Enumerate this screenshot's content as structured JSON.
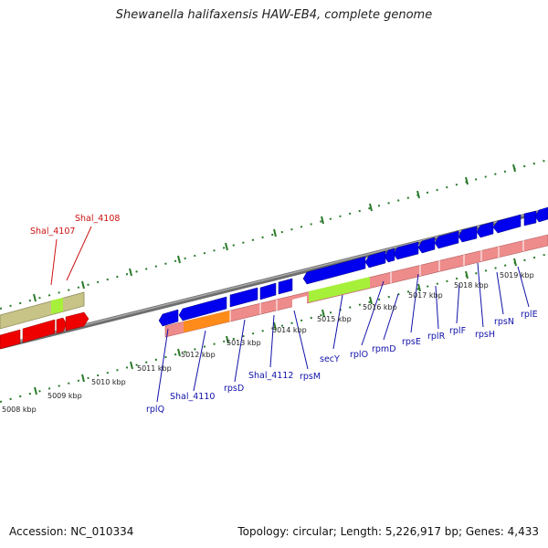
{
  "title": "Shewanella halifaxensis HAW-EB4, complete genome",
  "footer": {
    "accession": "Accession: NC_010334",
    "summary": "Topology: circular; Length: 5,226,917 bp; Genes: 4,433"
  },
  "colors": {
    "plus_cds": "#0000ee",
    "minus_cds": "#ee0000",
    "olive_band": "#c8c487",
    "green_seg": "#a6f03a",
    "pink_band": "#ee8c8c",
    "orange_seg": "#ff8c1a",
    "tick": "#2a7a2a",
    "label_blue": "#1111aa",
    "label_red": "#cc1111"
  },
  "scale_labels": [
    "5008 kbp",
    "5009 kbp",
    "5010 kbp",
    "5011 kbp",
    "5012 kbp",
    "5013 kbp",
    "5014 kbp",
    "5015 kbp",
    "5016 kbp",
    "5017 kbp",
    "5018 kbp",
    "5019 kbp"
  ],
  "gene_labels": {
    "top": [
      "Shal_4107",
      "Shal_4108"
    ],
    "bottom": [
      "rplQ",
      "Shal_4110",
      "rpsD",
      "Shal_4112",
      "rpsM",
      "secY",
      "rplO",
      "rpmD",
      "rpsE",
      "rplR",
      "rplF",
      "rpsH",
      "rpsN",
      "rplE"
    ]
  }
}
